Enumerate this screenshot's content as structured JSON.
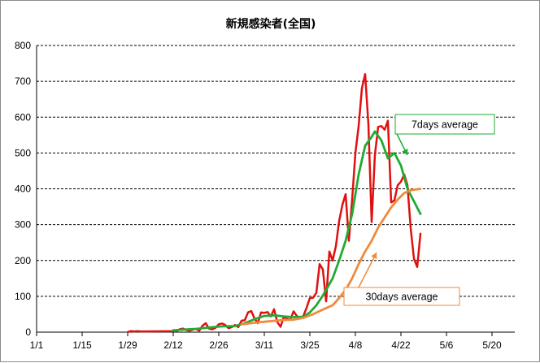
{
  "chart_data": {
    "type": "line",
    "title": "新規感染者(全国)",
    "xlabel": "",
    "ylabel": "",
    "ylim": [
      0,
      800
    ],
    "xlim": [
      "1/1",
      "5/27"
    ],
    "yticks": [
      "0",
      "100",
      "200",
      "300",
      "400",
      "500",
      "600",
      "700",
      "800"
    ],
    "xticks": [
      "1/1",
      "1/15",
      "1/29",
      "2/12",
      "2/26",
      "3/11",
      "3/25",
      "4/8",
      "4/22",
      "5/6",
      "5/20"
    ],
    "grid": "horizontal dashed",
    "colors": {
      "daily": "#e01010",
      "avg7": "#22aa33",
      "avg30": "#f08a3c",
      "avg7_box_border": "#22aa33",
      "avg30_box_border": "#f08a3c"
    },
    "annotations": [
      {
        "text": "7days average",
        "series": "7days average"
      },
      {
        "text": "30days average",
        "series": "30days average"
      }
    ],
    "series": [
      {
        "name": "",
        "color": "#e01010",
        "points": [
          [
            "1/29",
            0
          ],
          [
            "1/30",
            3
          ],
          [
            "1/31",
            2
          ],
          [
            "2/1",
            3
          ],
          [
            "2/2",
            2
          ],
          [
            "2/3",
            2
          ],
          [
            "2/13",
            3
          ],
          [
            "2/14",
            8
          ],
          [
            "2/15",
            10
          ],
          [
            "2/16",
            6
          ],
          [
            "2/17",
            4
          ],
          [
            "2/18",
            7
          ],
          [
            "2/19",
            9
          ],
          [
            "2/20",
            4
          ],
          [
            "2/21",
            18
          ],
          [
            "2/22",
            25
          ],
          [
            "2/23",
            10
          ],
          [
            "2/24",
            8
          ],
          [
            "2/25",
            12
          ],
          [
            "2/26",
            22
          ],
          [
            "2/27",
            24
          ],
          [
            "2/28",
            20
          ],
          [
            "2/29",
            11
          ],
          [
            "3/1",
            14
          ],
          [
            "3/2",
            20
          ],
          [
            "3/3",
            14
          ],
          [
            "3/4",
            32
          ],
          [
            "3/5",
            33
          ],
          [
            "3/6",
            55
          ],
          [
            "3/7",
            59
          ],
          [
            "3/8",
            38
          ],
          [
            "3/9",
            25
          ],
          [
            "3/10",
            55
          ],
          [
            "3/11",
            54
          ],
          [
            "3/12",
            56
          ],
          [
            "3/13",
            44
          ],
          [
            "3/14",
            64
          ],
          [
            "3/15",
            28
          ],
          [
            "3/16",
            15
          ],
          [
            "3/17",
            43
          ],
          [
            "3/18",
            37
          ],
          [
            "3/19",
            35
          ],
          [
            "3/20",
            58
          ],
          [
            "3/21",
            45
          ],
          [
            "3/22",
            38
          ],
          [
            "3/23",
            45
          ],
          [
            "3/24",
            68
          ],
          [
            "3/25",
            95
          ],
          [
            "3/26",
            96
          ],
          [
            "3/27",
            110
          ],
          [
            "3/28",
            190
          ],
          [
            "3/29",
            175
          ],
          [
            "3/30",
            86
          ],
          [
            "3/31",
            225
          ],
          [
            "4/1",
            200
          ],
          [
            "4/2",
            240
          ],
          [
            "4/3",
            310
          ],
          [
            "4/4",
            355
          ],
          [
            "4/5",
            385
          ],
          [
            "4/6",
            255
          ],
          [
            "4/7",
            370
          ],
          [
            "4/8",
            500
          ],
          [
            "4/9",
            575
          ],
          [
            "4/10",
            680
          ],
          [
            "4/11",
            720
          ],
          [
            "4/12",
            580
          ],
          [
            "4/13",
            307
          ],
          [
            "4/14",
            495
          ],
          [
            "4/15",
            573
          ],
          [
            "4/16",
            575
          ],
          [
            "4/17",
            565
          ],
          [
            "4/18",
            590
          ],
          [
            "4/19",
            362
          ],
          [
            "4/20",
            368
          ],
          [
            "4/21",
            410
          ],
          [
            "4/22",
            420
          ],
          [
            "4/23",
            440
          ],
          [
            "4/24",
            410
          ],
          [
            "4/25",
            290
          ],
          [
            "4/26",
            205
          ],
          [
            "4/27",
            182
          ],
          [
            "4/28",
            275
          ]
        ]
      },
      {
        "name": "7days average",
        "color": "#22aa33",
        "points": [
          [
            "2/12",
            5
          ],
          [
            "2/15",
            7
          ],
          [
            "2/19",
            9
          ],
          [
            "2/23",
            13
          ],
          [
            "2/27",
            16
          ],
          [
            "3/2",
            17
          ],
          [
            "3/5",
            25
          ],
          [
            "3/8",
            36
          ],
          [
            "3/11",
            45
          ],
          [
            "3/14",
            47
          ],
          [
            "3/17",
            44
          ],
          [
            "3/20",
            42
          ],
          [
            "3/23",
            43
          ],
          [
            "3/25",
            55
          ],
          [
            "3/27",
            75
          ],
          [
            "3/29",
            102
          ],
          [
            "4/1",
            150
          ],
          [
            "4/3",
            200
          ],
          [
            "4/5",
            255
          ],
          [
            "4/7",
            330
          ],
          [
            "4/9",
            440
          ],
          [
            "4/11",
            520
          ],
          [
            "4/13",
            545
          ],
          [
            "4/14",
            560
          ],
          [
            "4/16",
            535
          ],
          [
            "4/18",
            485
          ],
          [
            "4/20",
            500
          ],
          [
            "4/22",
            465
          ],
          [
            "4/24",
            400
          ],
          [
            "4/26",
            365
          ],
          [
            "4/28",
            330
          ]
        ]
      },
      {
        "name": "30days average",
        "color": "#f08a3c",
        "points": [
          [
            "3/4",
            22
          ],
          [
            "3/8",
            26
          ],
          [
            "3/12",
            30
          ],
          [
            "3/16",
            33
          ],
          [
            "3/20",
            35
          ],
          [
            "3/23",
            40
          ],
          [
            "3/26",
            50
          ],
          [
            "3/29",
            63
          ],
          [
            "4/1",
            75
          ],
          [
            "4/3",
            95
          ],
          [
            "4/5",
            118
          ],
          [
            "4/7",
            150
          ],
          [
            "4/9",
            190
          ],
          [
            "4/11",
            225
          ],
          [
            "4/13",
            255
          ],
          [
            "4/15",
            292
          ],
          [
            "4/17",
            320
          ],
          [
            "4/19",
            348
          ],
          [
            "4/21",
            370
          ],
          [
            "4/23",
            388
          ],
          [
            "4/25",
            396
          ],
          [
            "4/28",
            400
          ]
        ]
      }
    ]
  }
}
